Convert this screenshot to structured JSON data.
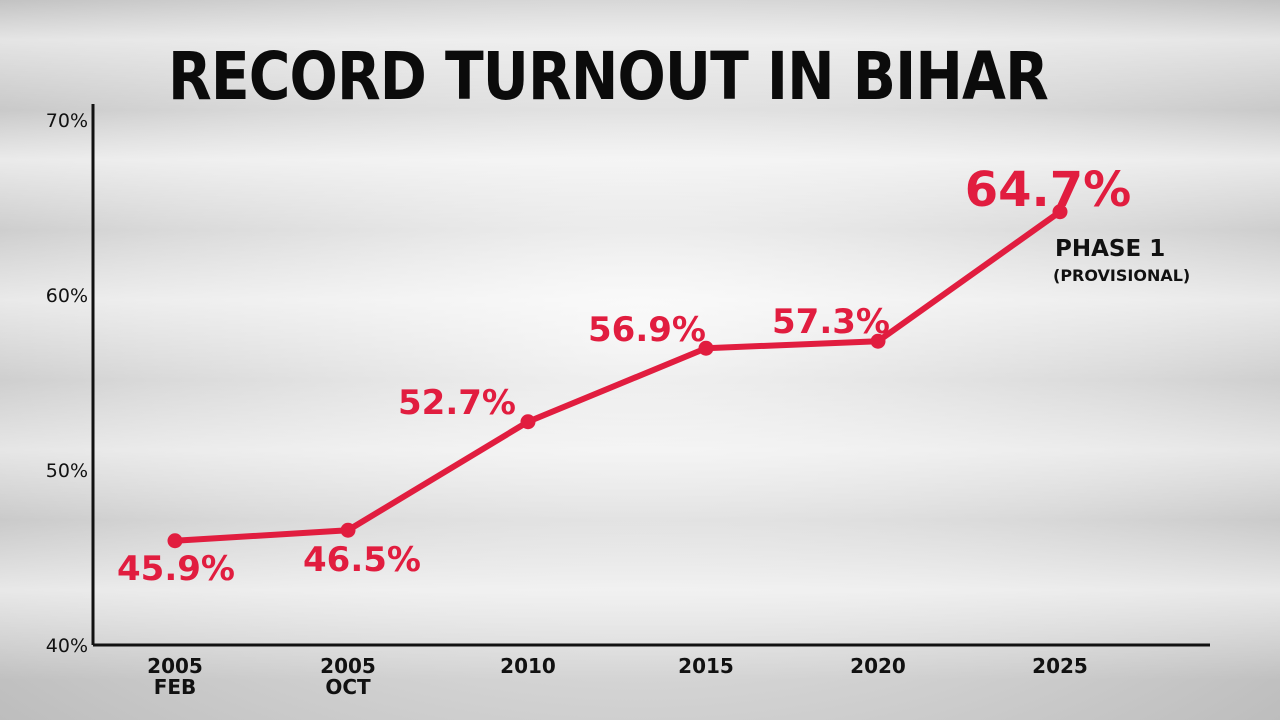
{
  "chart_data": {
    "type": "line",
    "title": "RECORD TURNOUT IN BIHAR",
    "categories": [
      {
        "line1": "2005",
        "line2": "FEB"
      },
      {
        "line1": "2005",
        "line2": "OCT"
      },
      {
        "line1": "2010",
        "line2": ""
      },
      {
        "line1": "2015",
        "line2": ""
      },
      {
        "line1": "2020",
        "line2": ""
      },
      {
        "line1": "2025",
        "line2": ""
      }
    ],
    "values": [
      45.9,
      46.5,
      52.7,
      56.9,
      57.3,
      64.7
    ],
    "data_labels": [
      "45.9%",
      "46.5%",
      "52.7%",
      "56.9%",
      "57.3%",
      "64.7%"
    ],
    "yticks": [
      "40%",
      "50%",
      "60%",
      "70%"
    ],
    "ylim": [
      40,
      70
    ],
    "annotation": {
      "line1": "PHASE 1",
      "line2": "(PROVISIONAL)"
    },
    "colors": {
      "line": "#e11d3f",
      "axis": "#111111"
    },
    "grid": false,
    "legend": "none"
  }
}
